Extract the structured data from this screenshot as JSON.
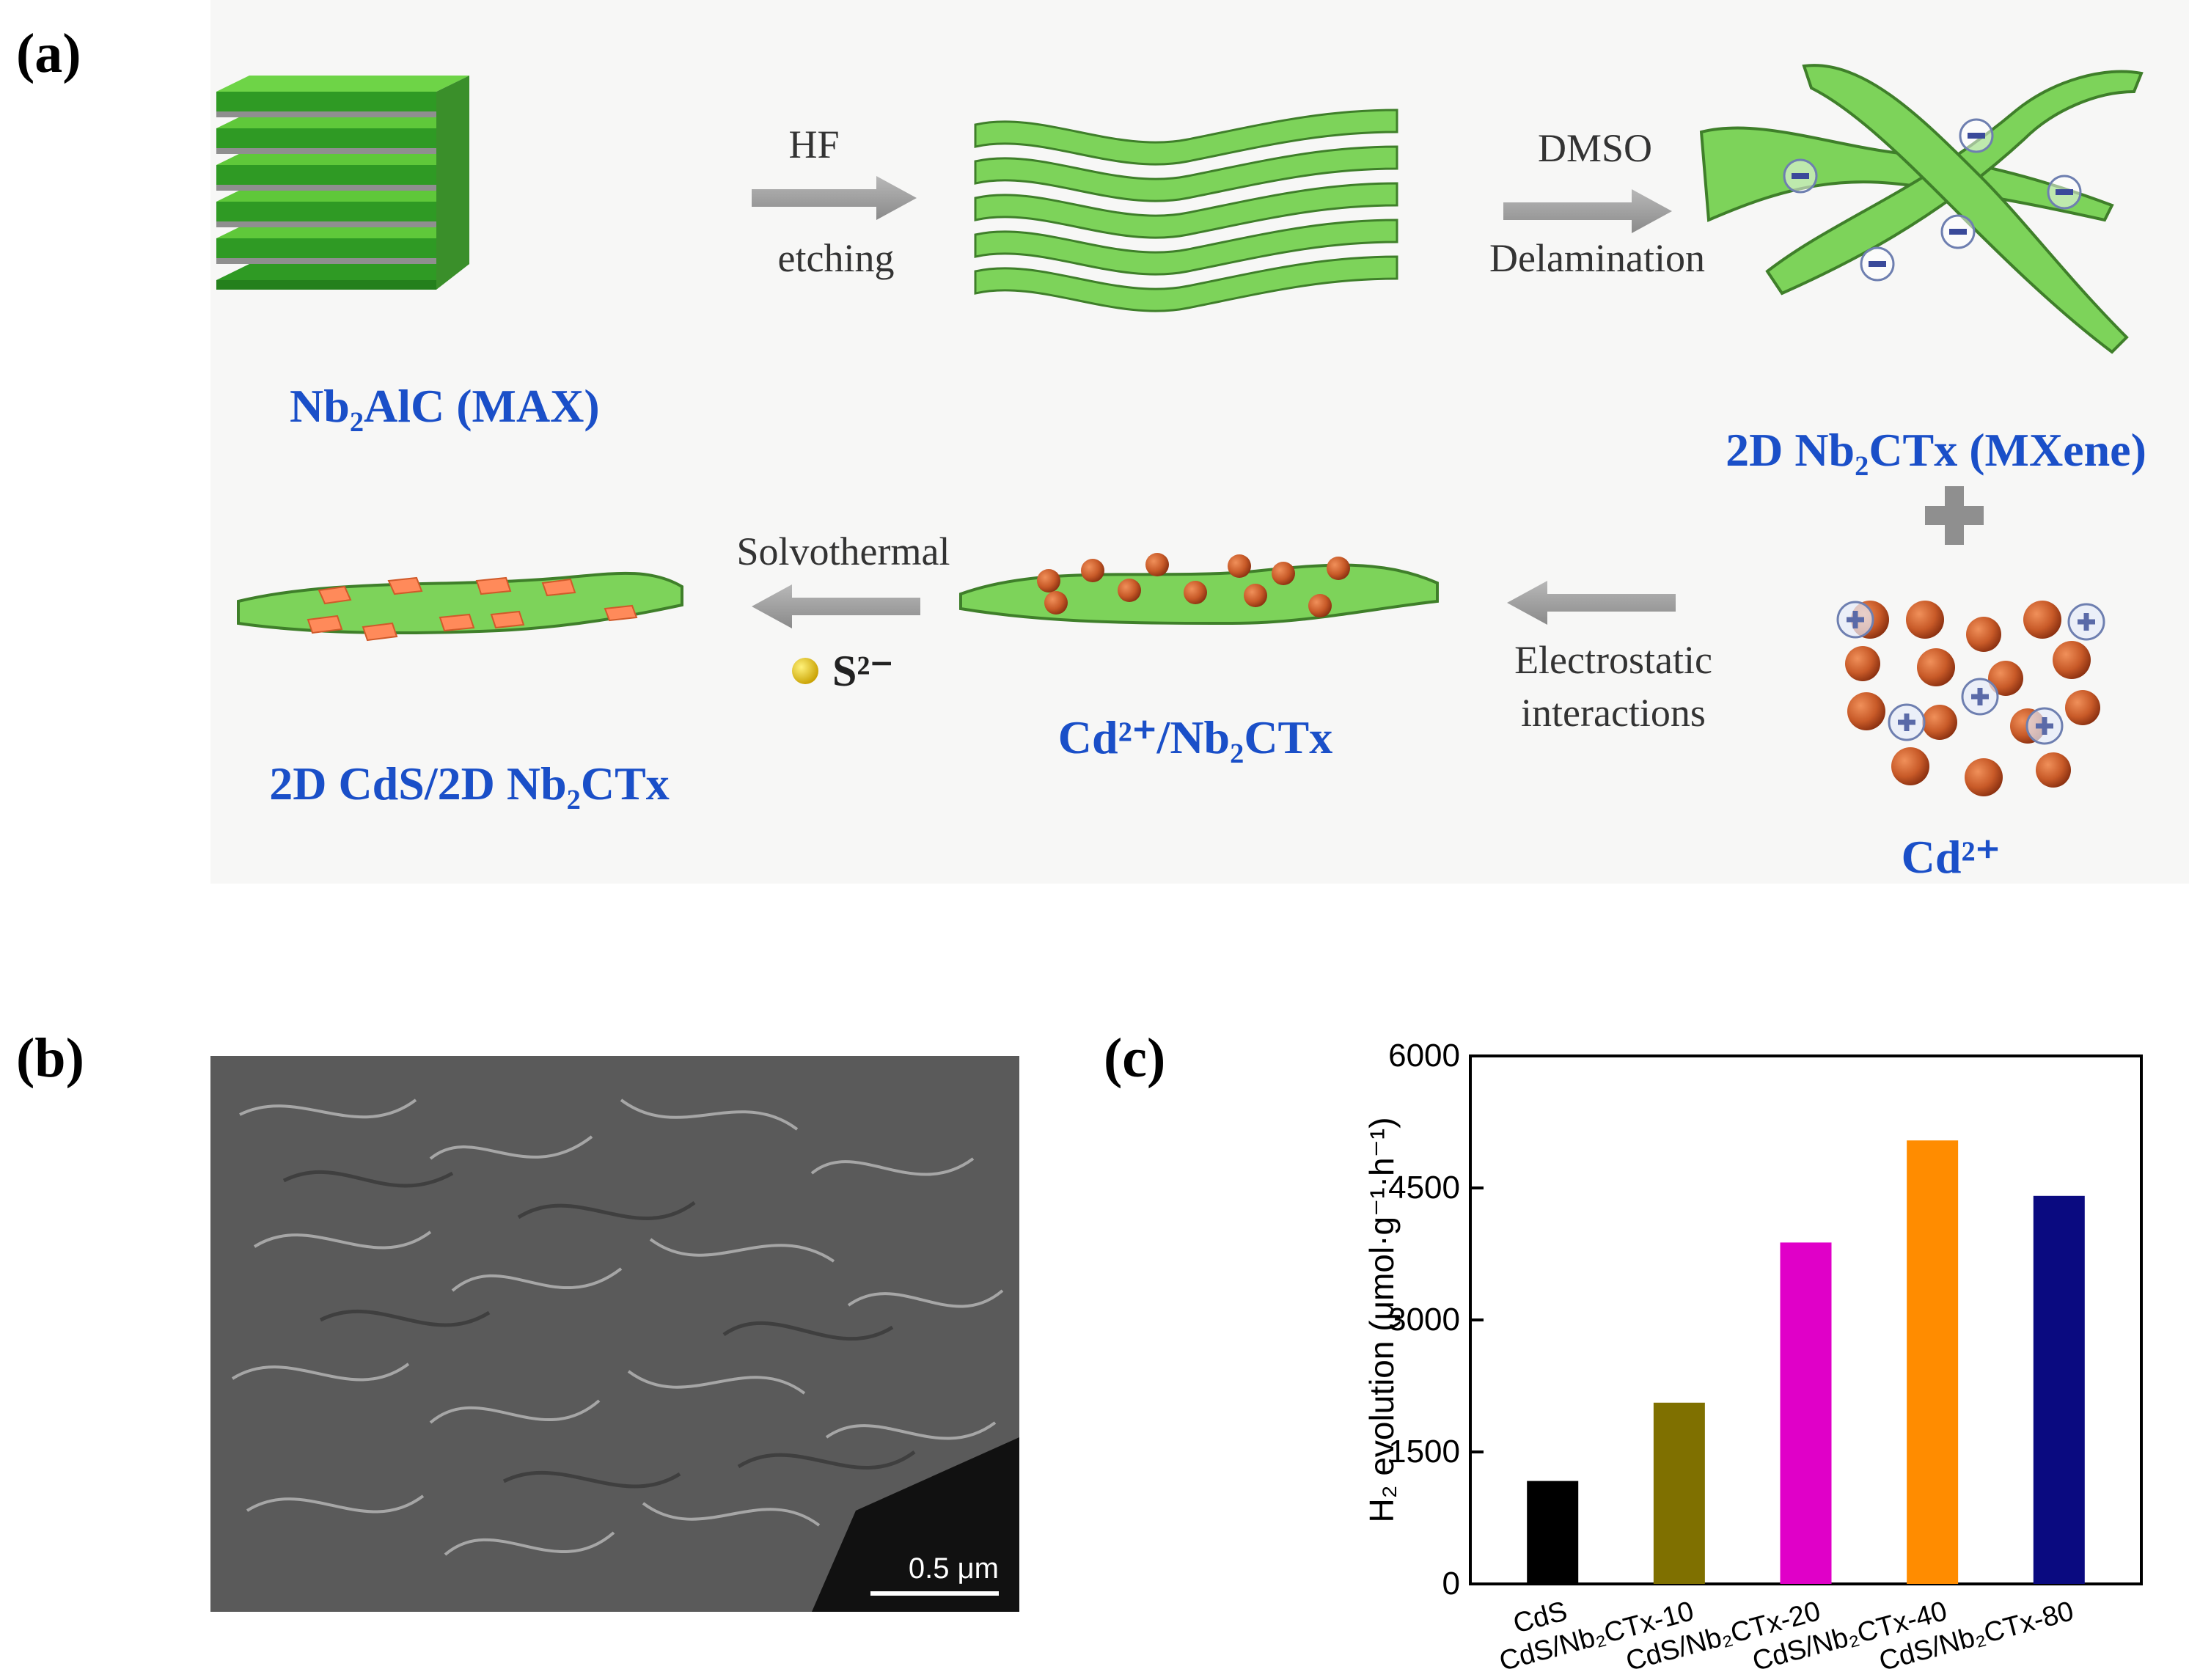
{
  "panels": {
    "a": "(a)",
    "b": "(b)",
    "c": "(c)"
  },
  "schematic": {
    "max_label": "Nb₂AlC (MAX)",
    "hf_top": "HF",
    "hf_bottom": "etching",
    "dmso_top": "DMSO",
    "dmso_bottom": "Delamination",
    "mxene_label": "2D Nb₂CTx (MXene)",
    "plus": "+",
    "cd_label": "Cd²⁺",
    "electro_1": "Electrostatic",
    "electro_2": "interactions",
    "cd_nb_label": "Cd²⁺/Nb₂CTx",
    "solvothermal": "Solvothermal",
    "sulfide": "S²⁻",
    "final_label": "2D CdS/2D Nb₂CTx",
    "label_color": "#1a4fc8",
    "sheet_color": "#7dd35a",
    "particle_color": "#c85a28"
  },
  "sem": {
    "scale": "0.5 μm"
  },
  "chart_data": {
    "type": "bar",
    "categories": [
      "CdS",
      "CdS/Nb₂CTx-10",
      "CdS/Nb₂CTx-20",
      "CdS/Nb₂CTx-40",
      "CdS/Nb₂CTx-80"
    ],
    "values": [
      1170,
      2060,
      3880,
      5040,
      4410
    ],
    "colors": [
      "#000000",
      "#7f7000",
      "#e000c8",
      "#ff8c00",
      "#0a0a80"
    ],
    "ylabel": "H₂ evolution (μmol·g⁻¹·h⁻¹)",
    "yticks": [
      0,
      1500,
      3000,
      4500,
      6000
    ],
    "ylim": [
      0,
      6000
    ],
    "grid": false
  }
}
